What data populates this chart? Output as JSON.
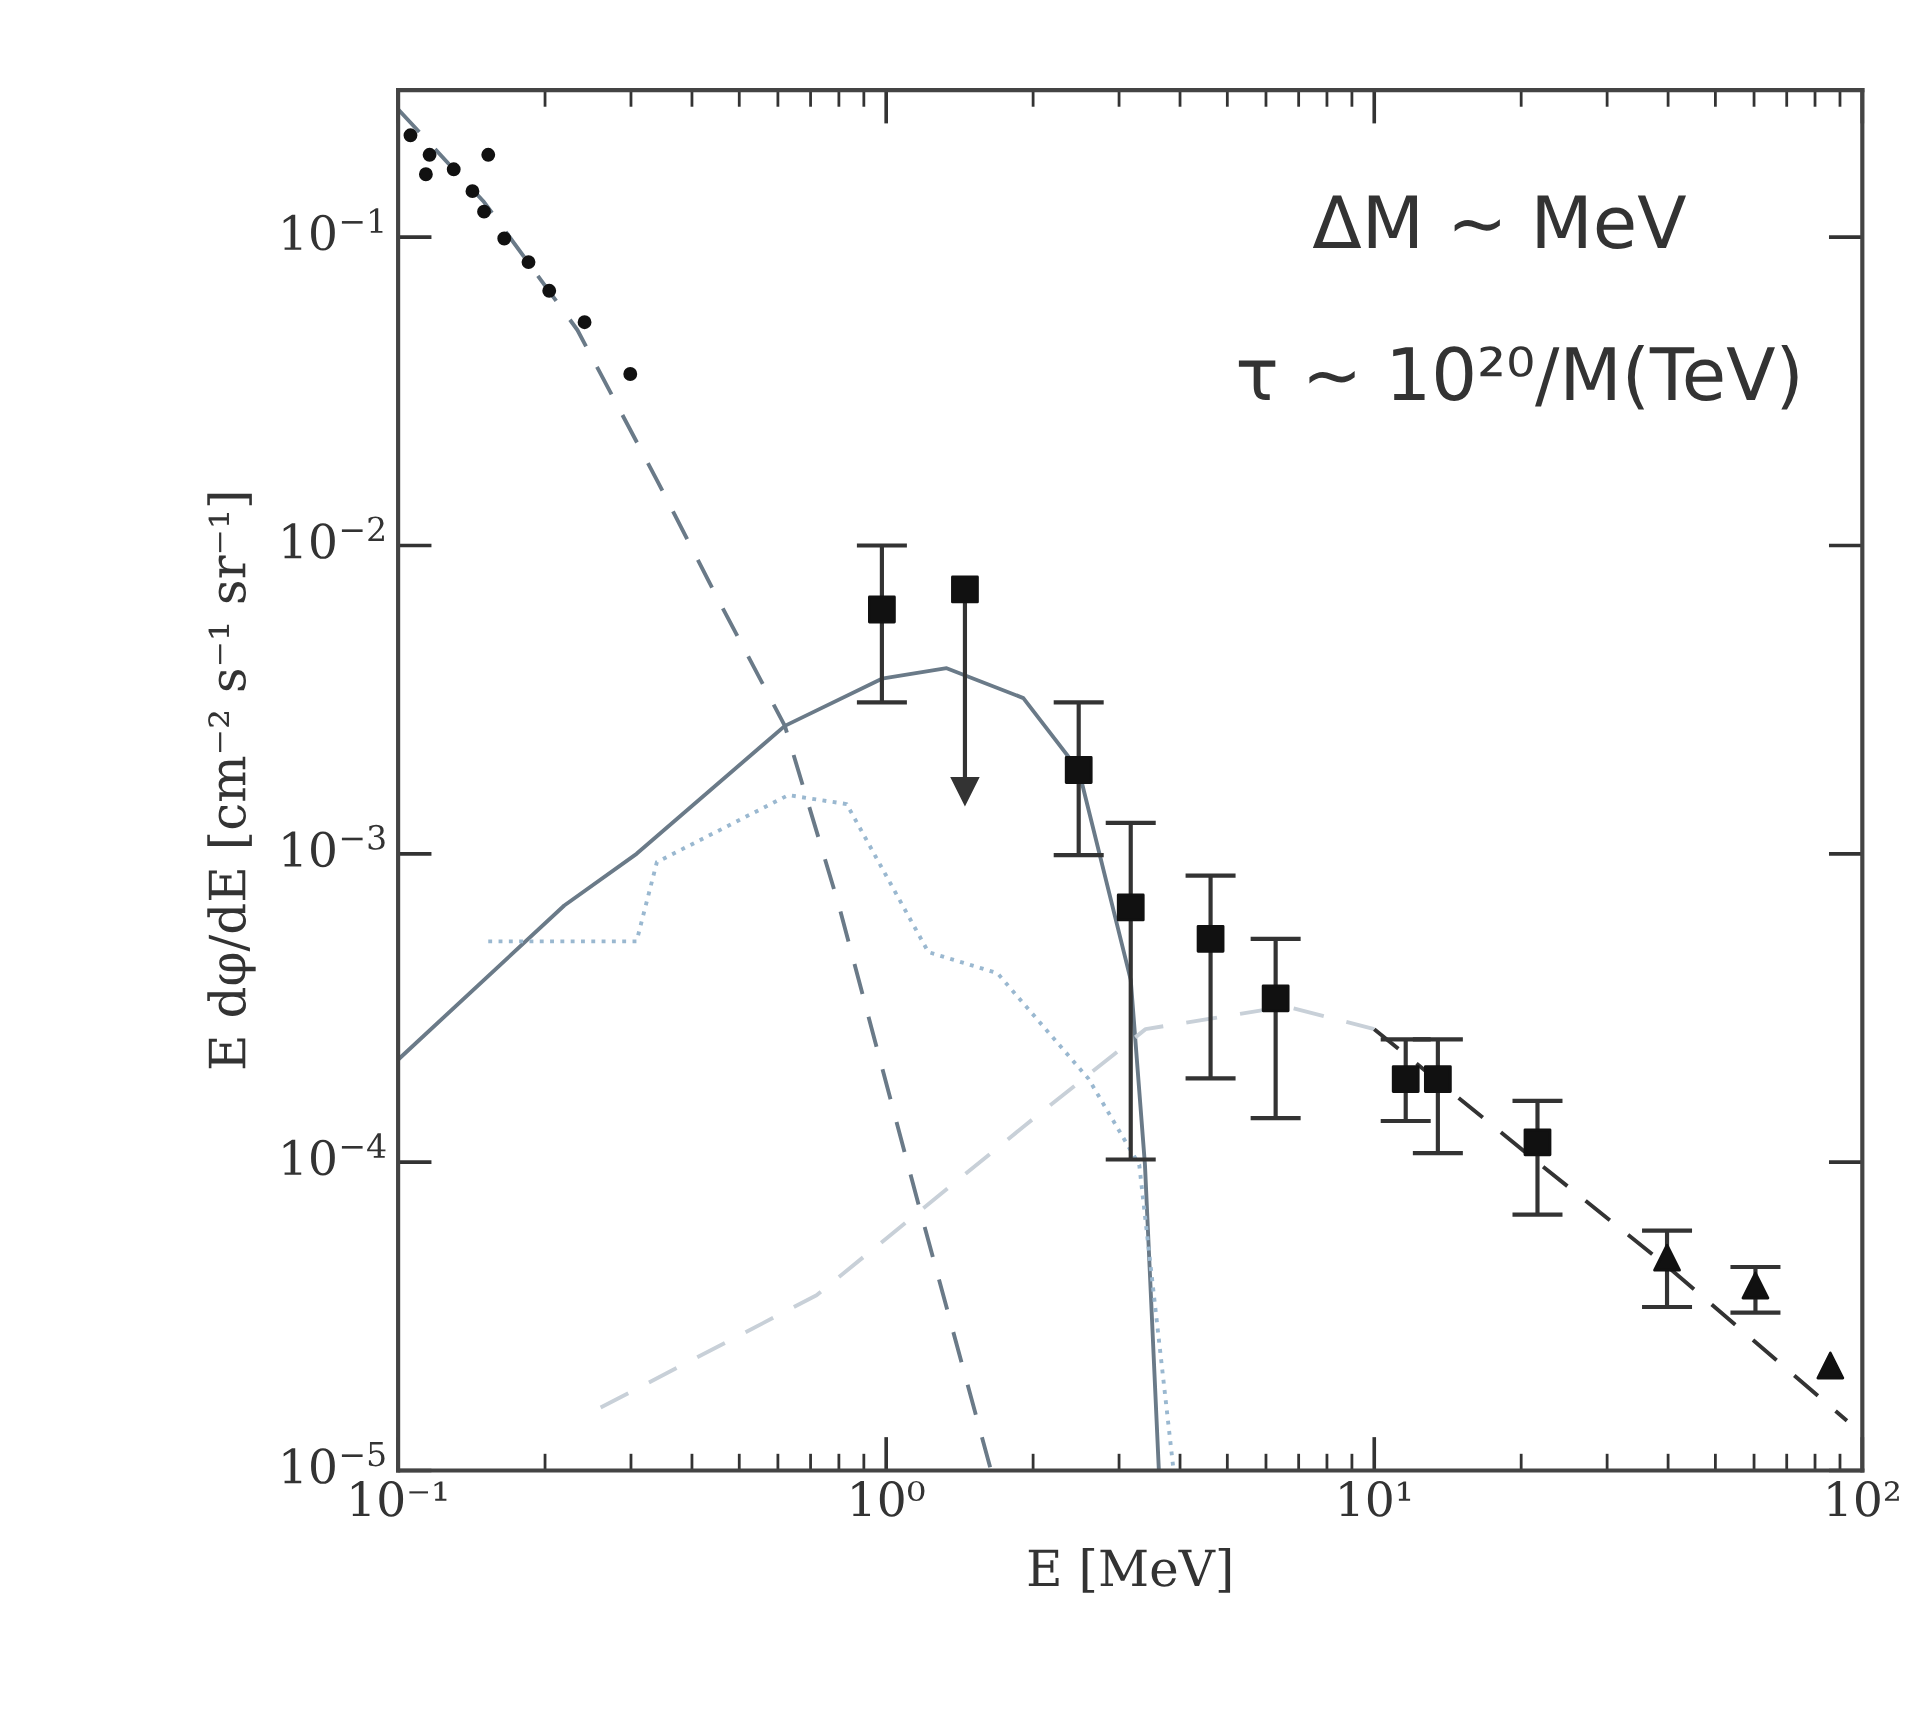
{
  "chart_data": {
    "type": "line",
    "xlabel": "E [MeV]",
    "ylabel": "E dφ/dE [cm⁻² s⁻¹ sr⁻¹]",
    "log": "xy",
    "grid": false,
    "legend": false,
    "xlim": [
      0.1,
      100
    ],
    "ylim": [
      1e-05,
      0.3
    ],
    "xticks": [
      {
        "value": 0.1,
        "label": "10⁻¹"
      },
      {
        "value": 1,
        "label": "10⁰"
      },
      {
        "value": 10,
        "label": "10¹"
      },
      {
        "value": 100,
        "label": "10²"
      }
    ],
    "yticks": [
      {
        "value": 1e-05,
        "label": "10$^{−5}$"
      },
      {
        "value": 0.0001,
        "label": "10$^{−4}$"
      },
      {
        "value": 0.001,
        "label": "10$^{−3}$"
      },
      {
        "value": 0.01,
        "label": "10$^{−2}$"
      },
      {
        "value": 0.1,
        "label": "10$^{−1}$"
      }
    ],
    "annotations": [
      "ΔM ~ MeV",
      "τ ~ 10²⁰/M(TeV)"
    ],
    "series": [
      {
        "line_style": "dashed",
        "color": "#6a7a88",
        "x": [
          0.1,
          0.15,
          0.233,
          0.339,
          0.45,
          0.62,
          0.8,
          1.17,
          1.64
        ],
        "values": [
          0.26,
          0.13,
          0.05,
          0.0163,
          0.0068,
          0.0026,
          0.00068,
          7.1e-05,
          1e-05
        ]
      },
      {
        "line_style": "solid",
        "color": "#6a7a88",
        "x": [
          0.1,
          0.219,
          0.308,
          0.62,
          0.98,
          1.33,
          1.91,
          2.48,
          3.17,
          3.39,
          3.62
        ],
        "values": [
          0.000215,
          0.00068,
          0.001,
          0.0026,
          0.0037,
          0.004,
          0.0032,
          0.00187,
          0.00039,
          9.8e-05,
          1e-05
        ]
      },
      {
        "line_style": "dotted",
        "color": "#9ab8d0",
        "x": [
          0.153,
          0.308,
          0.339,
          0.63,
          0.83,
          1.22,
          1.69,
          2.6,
          3.3,
          3.88
        ],
        "values": [
          0.00052,
          0.00052,
          0.00094,
          0.00155,
          0.00145,
          0.00048,
          0.00041,
          0.000186,
          9.8e-05,
          1e-05
        ]
      },
      {
        "line_style": "dashed",
        "color": "#c8d0d8",
        "x": [
          0.26,
          0.72,
          1.93,
          3.4,
          6.6,
          10
        ],
        "values": [
          1.6e-05,
          3.7e-05,
          0.000132,
          0.00027,
          0.00032,
          0.00027
        ]
      },
      {
        "line_style": "dashed",
        "color": "#333333",
        "x": [
          10,
          21.6,
          39.8,
          93
        ],
        "values": [
          0.00027,
          0.0001,
          4.6e-05,
          1.45e-05
        ]
      },
      {
        "type": "scatter",
        "marker": "circle",
        "color": "#111111",
        "x": [
          0.106,
          0.114,
          0.116,
          0.13,
          0.142,
          0.153,
          0.15,
          0.165,
          0.185,
          0.204,
          0.241,
          0.299
        ],
        "values": [
          0.214,
          0.16,
          0.185,
          0.166,
          0.141,
          0.185,
          0.121,
          0.099,
          0.083,
          0.067,
          0.053,
          0.036
        ]
      },
      {
        "type": "scatter",
        "marker": "square",
        "color": "#111111",
        "x": [
          0.98,
          1.45,
          2.48,
          3.17,
          4.62,
          6.28,
          11.6,
          13.5,
          21.6
        ],
        "values": [
          0.0062,
          0.0072,
          0.00187,
          0.00067,
          0.00053,
          0.00034,
          0.000186,
          0.000186,
          0.000116
        ],
        "errors": [
          [
            0.0031,
            0.01
          ],
          [
            0.0016,
            0.0072
          ],
          [
            0.00099,
            0.0031
          ],
          [
            0.000102,
            0.00126
          ],
          [
            0.000187,
            0.00085
          ],
          [
            0.000139,
            0.00053
          ],
          [
            0.000136,
            0.00025
          ],
          [
            0.000107,
            0.00025
          ],
          [
            6.76e-05,
            0.000158
          ]
        ]
      },
      {
        "type": "scatter",
        "marker": "triangle",
        "color": "#111111",
        "x": [
          39.8,
          60.4,
          86
        ],
        "values": [
          4.9e-05,
          3.98e-05,
          2.19e-05
        ],
        "errors": [
          [
            3.39e-05,
            6e-05
          ],
          [
            3.25e-05,
            4.57e-05
          ],
          null
        ]
      }
    ]
  }
}
